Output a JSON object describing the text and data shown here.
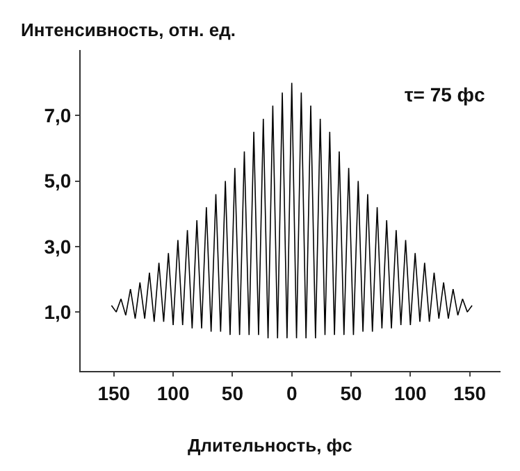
{
  "chart_data": {
    "type": "line",
    "ylabel": "Интенсивность, отн. ед.",
    "xlabel": "Длительность, фс",
    "annotations": [
      "τ= 75 фс"
    ],
    "x": [
      -152,
      -148,
      -144,
      -140,
      -136,
      -132,
      -128,
      -124,
      -120,
      -116,
      -112,
      -108,
      -104,
      -100,
      -96,
      -92,
      -88,
      -84,
      -80,
      -76,
      -72,
      -68,
      -64,
      -60,
      -56,
      -52,
      -48,
      -44,
      -40,
      -36,
      -32,
      -28,
      -24,
      -20,
      -16,
      -12,
      -8,
      -4,
      0,
      4,
      8,
      12,
      16,
      20,
      24,
      28,
      32,
      36,
      40,
      44,
      48,
      52,
      56,
      60,
      64,
      68,
      72,
      76,
      80,
      84,
      88,
      92,
      96,
      100,
      104,
      108,
      112,
      116,
      120,
      124,
      128,
      132,
      136,
      140,
      144,
      148,
      152
    ],
    "series": [
      {
        "color": "#000000",
        "values": [
          1.2,
          1.0,
          1.4,
          0.9,
          1.7,
          0.8,
          1.9,
          0.8,
          2.2,
          0.7,
          2.5,
          0.7,
          2.8,
          0.6,
          3.2,
          0.6,
          3.5,
          0.5,
          3.8,
          0.5,
          4.2,
          0.4,
          4.6,
          0.4,
          5.0,
          0.3,
          5.4,
          0.3,
          5.9,
          0.3,
          6.5,
          0.3,
          6.9,
          0.2,
          7.3,
          0.2,
          7.7,
          0.2,
          8.0,
          0.2,
          7.7,
          0.2,
          7.3,
          0.2,
          6.9,
          0.3,
          6.5,
          0.3,
          5.9,
          0.3,
          5.4,
          0.3,
          5.0,
          0.4,
          4.6,
          0.4,
          4.2,
          0.5,
          3.8,
          0.5,
          3.5,
          0.6,
          3.2,
          0.6,
          2.8,
          0.7,
          2.5,
          0.7,
          2.2,
          0.8,
          1.9,
          0.8,
          1.7,
          0.9,
          1.4,
          1.0,
          1.2
        ]
      }
    ],
    "xlim": [
      -178,
      176
    ],
    "ylim": [
      -0.8,
      9.0
    ],
    "xticks": [
      {
        "value": -150,
        "label": "150"
      },
      {
        "value": -100,
        "label": "100"
      },
      {
        "value": -50,
        "label": "50"
      },
      0,
      50,
      100,
      150
    ],
    "yticks": [
      {
        "value": 1,
        "label": "1,0"
      },
      {
        "value": 3,
        "label": "3,0"
      },
      {
        "value": 5,
        "label": "5,0"
      },
      {
        "value": 7,
        "label": "7,0"
      }
    ],
    "marker": "none",
    "line_style": "solid"
  }
}
